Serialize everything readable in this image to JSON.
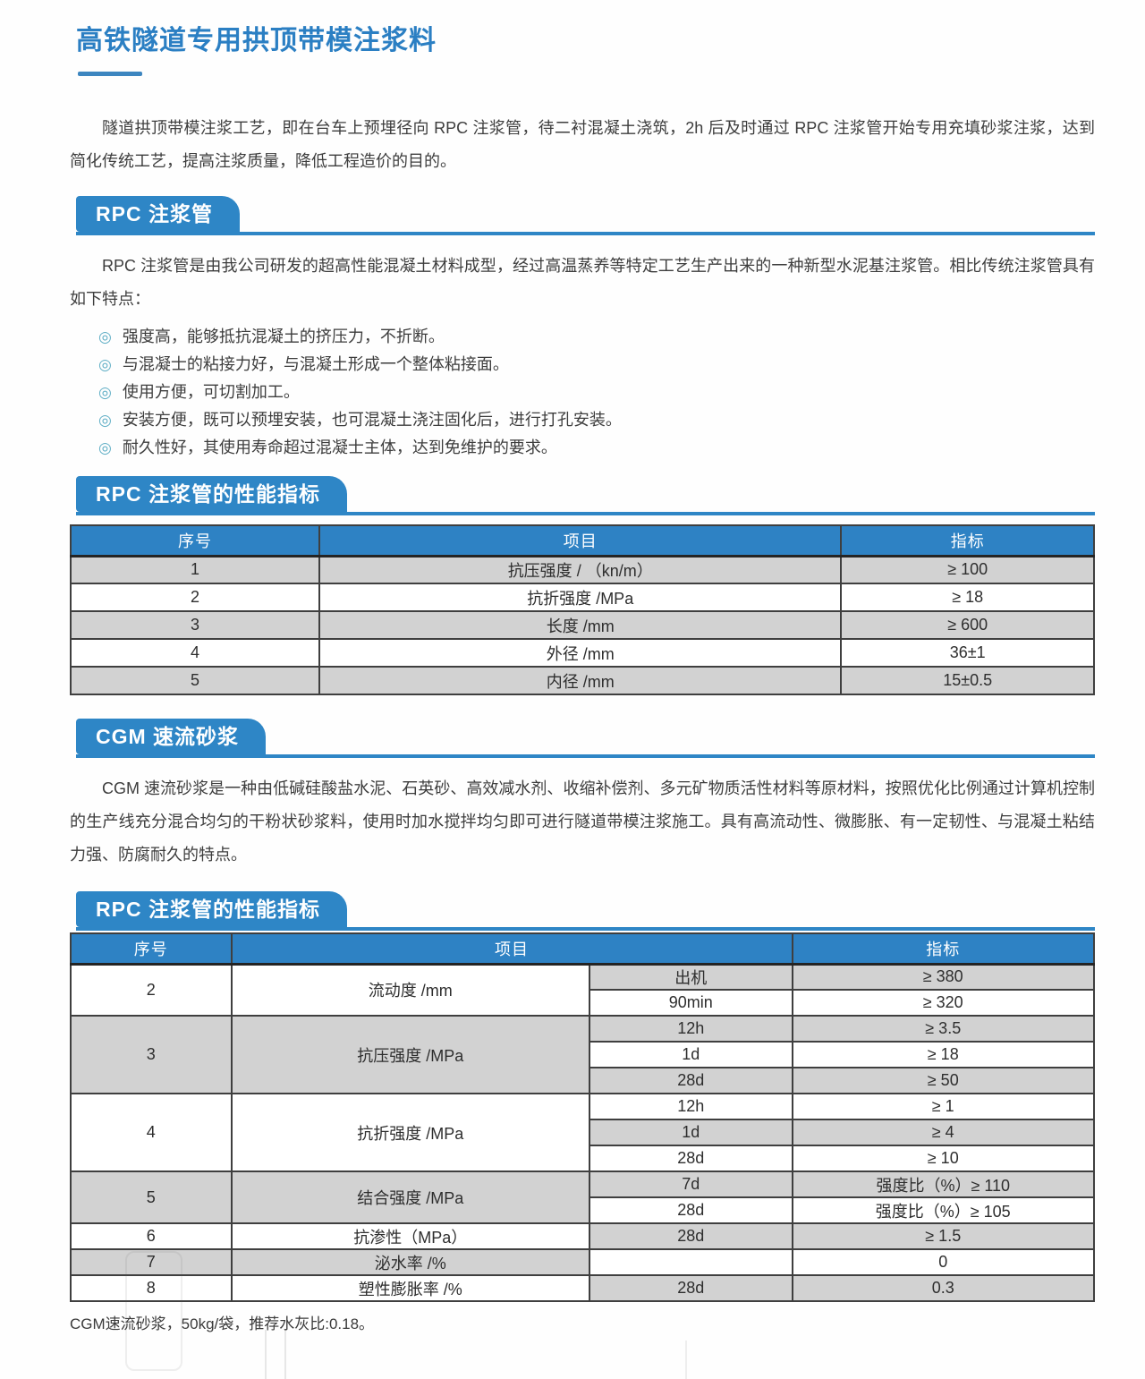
{
  "page": {
    "title": "高铁隧道专用拱顶带模注浆料"
  },
  "intro": "隧道拱顶带模注浆工艺，即在台车上预埋径向 RPC 注浆管，待二衬混凝土浇筑，2h 后及时通过 RPC 注浆管开始专用充填砂浆注浆，达到简化传统工艺，提高注浆质量，降低工程造价的目的。",
  "rpc": {
    "heading": "RPC 注浆管",
    "description": "RPC 注浆管是由我公司研发的超高性能混凝土材料成型，经过高温蒸养等特定工艺生产出来的一种新型水泥基注浆管。相比传统注浆管具有如下特点：",
    "bullet_icon": "◎",
    "features": [
      "强度高，能够抵抗混凝土的挤压力，不折断。",
      "与混凝士的粘接力好，与混凝土形成一个整体粘接面。",
      "使用方便，可切割加工。",
      "安装方便，既可以预埋安装，也可混凝土浇注固化后，进行打孔安装。",
      "耐久性好，其使用寿命超过混凝士主体，达到免维护的要求。"
    ]
  },
  "rpc_performance": {
    "heading": "RPC 注浆管的性能指标",
    "columns": [
      "序号",
      "项目",
      "指标"
    ],
    "rows": [
      [
        "1",
        "抗压强度 / （kn/m）",
        "≥ 100"
      ],
      [
        "2",
        "抗折强度 /MPa",
        "≥ 18"
      ],
      [
        "3",
        "长度 /mm",
        "≥ 600"
      ],
      [
        "4",
        "外径 /mm",
        "36±1"
      ],
      [
        "5",
        "内径 /mm",
        "15±0.5"
      ]
    ]
  },
  "cgm": {
    "heading": "CGM 速流砂浆",
    "description": "CGM 速流砂浆是一种由低碱硅酸盐水泥、石英砂、高效减水剂、收缩补偿剂、多元矿物质活性材料等原材料，按照优化比例通过计算机控制的生产线充分混合均匀的干粉状砂浆料，使用时加水搅拌均匀即可进行隧道带模注浆施工。具有高流动性、微膨胀、有一定韧性、与混凝土粘结力强、防腐耐久的特点。"
  },
  "cgm_performance": {
    "heading": "RPC 注浆管的性能指标",
    "columns": [
      "序号",
      "项目",
      "指标"
    ],
    "groups": [
      {
        "no": "2",
        "item": "流动度 /mm",
        "subs": [
          {
            "cond": "出机",
            "value": "≥ 380"
          },
          {
            "cond": "90min",
            "value": "≥ 320"
          }
        ]
      },
      {
        "no": "3",
        "item": "抗压强度 /MPa",
        "subs": [
          {
            "cond": "12h",
            "value": "≥ 3.5"
          },
          {
            "cond": "1d",
            "value": "≥ 18"
          },
          {
            "cond": "28d",
            "value": "≥ 50"
          }
        ]
      },
      {
        "no": "4",
        "item": "抗折强度 /MPa",
        "subs": [
          {
            "cond": "12h",
            "value": "≥ 1"
          },
          {
            "cond": "1d",
            "value": "≥ 4"
          },
          {
            "cond": "28d",
            "value": "≥ 10"
          }
        ]
      },
      {
        "no": "5",
        "item": "结合强度 /MPa",
        "subs": [
          {
            "cond": "7d",
            "value": "强度比（%）≥ 110"
          },
          {
            "cond": "28d",
            "value": "强度比（%）≥ 105"
          }
        ]
      },
      {
        "no": "6",
        "item": "抗渗性（MPa）",
        "subs": [
          {
            "cond": "28d",
            "value": "≥ 1.5"
          }
        ]
      },
      {
        "no": "7",
        "item": "泌水率 /%",
        "subs": [
          {
            "cond": "",
            "value": "0"
          }
        ]
      },
      {
        "no": "8",
        "item": "塑性膨胀率 /%",
        "subs": [
          {
            "cond": "28d",
            "value": "0.3"
          }
        ]
      }
    ]
  },
  "footnote": "CGM速流砂浆，50kg/袋，推荐水灰比:0.18。",
  "colors": {
    "accent_blue": "#2E86C6",
    "table_header_blue": "#2E82C4",
    "title_blue": "#2B7FC3",
    "row_gray": "#D2D2D2",
    "bullet_teal": "#5FAEC5",
    "border_dark": "#3F3F3F"
  }
}
